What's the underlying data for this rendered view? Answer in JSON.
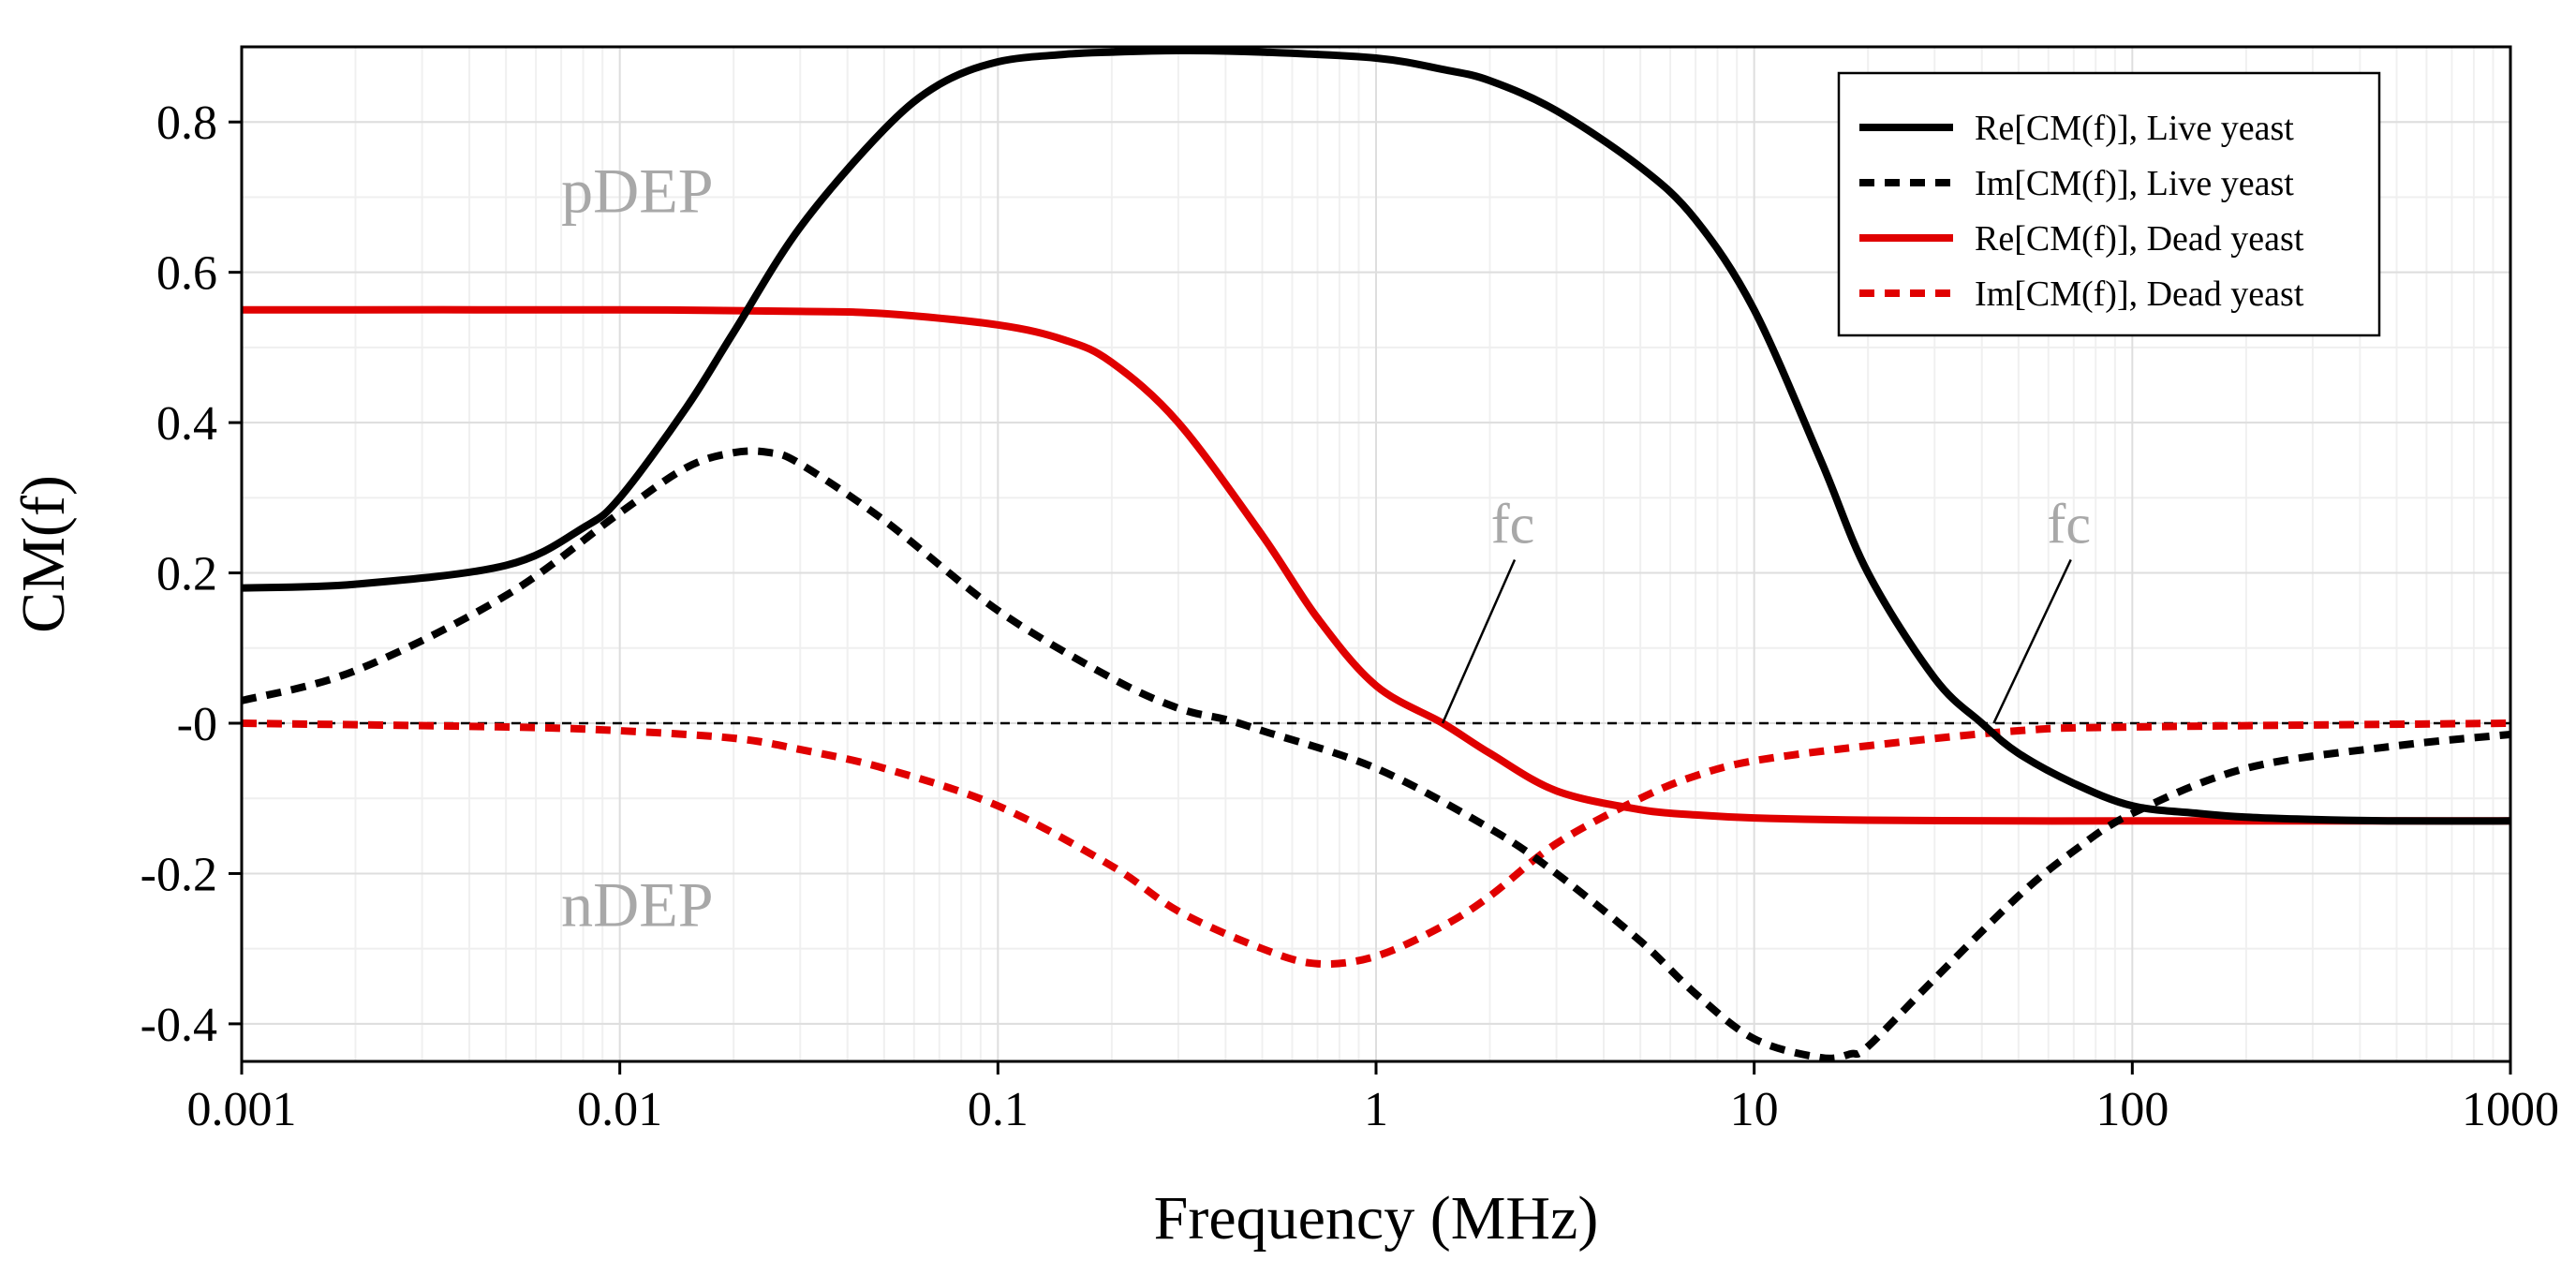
{
  "chart_data": {
    "type": "line",
    "xscale": "log",
    "xlabel": "Frequency (MHz)",
    "ylabel": "CM(f)",
    "xlim": [
      0.001,
      1000
    ],
    "ylim": [
      -0.45,
      0.9
    ],
    "grid": true,
    "legend_position": "top-right",
    "x_ticks": [
      0.001,
      0.01,
      0.1,
      1,
      10,
      100,
      1000
    ],
    "x_tick_labels": [
      "0.001",
      "0.01",
      "0.1",
      "1",
      "10",
      "100",
      "1000"
    ],
    "y_ticks": [
      0.8,
      0.6,
      0.4,
      0.2,
      0,
      -0.2,
      -0.4
    ],
    "y_tick_labels": [
      "0.8",
      "0.6",
      "0.4",
      "0.2",
      "-0",
      "-0.2",
      "-0.4"
    ],
    "series": [
      {
        "name": "Re[CM(f)], Live yeast",
        "color": "#000000",
        "dash": "solid",
        "x": [
          0.001,
          0.002,
          0.005,
          0.008,
          0.01,
          0.015,
          0.02,
          0.03,
          0.05,
          0.07,
          0.1,
          0.15,
          0.2,
          0.3,
          0.5,
          1,
          1.5,
          2,
          3,
          5,
          7,
          10,
          15,
          20,
          30,
          40,
          50,
          70,
          100,
          150,
          200,
          300,
          500,
          1000
        ],
        "values": [
          0.18,
          0.185,
          0.21,
          0.26,
          0.3,
          0.42,
          0.52,
          0.66,
          0.79,
          0.85,
          0.88,
          0.89,
          0.893,
          0.895,
          0.893,
          0.885,
          0.87,
          0.855,
          0.815,
          0.74,
          0.67,
          0.55,
          0.35,
          0.2,
          0.06,
          0.0,
          -0.04,
          -0.08,
          -0.11,
          -0.12,
          -0.125,
          -0.128,
          -0.13,
          -0.13
        ]
      },
      {
        "name": "Im[CM(f)], Live yeast",
        "color": "#000000",
        "dash": "dashed",
        "x": [
          0.001,
          0.002,
          0.005,
          0.01,
          0.015,
          0.02,
          0.025,
          0.03,
          0.05,
          0.1,
          0.2,
          0.3,
          0.4,
          0.5,
          1,
          2,
          3,
          5,
          7,
          10,
          15,
          18,
          20,
          30,
          50,
          70,
          100,
          200,
          500,
          1000
        ],
        "values": [
          0.03,
          0.07,
          0.17,
          0.28,
          0.34,
          0.36,
          0.36,
          0.345,
          0.27,
          0.15,
          0.06,
          0.02,
          0.005,
          -0.01,
          -0.06,
          -0.14,
          -0.2,
          -0.29,
          -0.36,
          -0.42,
          -0.445,
          -0.44,
          -0.43,
          -0.34,
          -0.23,
          -0.17,
          -0.12,
          -0.06,
          -0.03,
          -0.015
        ]
      },
      {
        "name": "Re[CM(f)], Dead yeast",
        "color": "#e00000",
        "dash": "solid",
        "x": [
          0.001,
          0.01,
          0.03,
          0.05,
          0.1,
          0.15,
          0.2,
          0.3,
          0.5,
          0.7,
          1,
          1.5,
          2,
          3,
          5,
          7,
          10,
          20,
          50,
          100,
          1000
        ],
        "values": [
          0.55,
          0.55,
          0.548,
          0.545,
          0.53,
          0.51,
          0.48,
          0.4,
          0.25,
          0.14,
          0.05,
          0.0,
          -0.04,
          -0.09,
          -0.115,
          -0.122,
          -0.126,
          -0.129,
          -0.13,
          -0.13,
          -0.13
        ]
      },
      {
        "name": "Im[CM(f)], Dead yeast",
        "color": "#e00000",
        "dash": "dashed",
        "x": [
          0.001,
          0.005,
          0.01,
          0.02,
          0.03,
          0.05,
          0.1,
          0.2,
          0.3,
          0.5,
          0.7,
          1,
          1.5,
          2,
          3,
          5,
          7,
          10,
          20,
          50,
          100,
          1000
        ],
        "values": [
          0.0,
          -0.005,
          -0.01,
          -0.02,
          -0.035,
          -0.06,
          -0.11,
          -0.19,
          -0.25,
          -0.3,
          -0.32,
          -0.31,
          -0.27,
          -0.23,
          -0.16,
          -0.1,
          -0.07,
          -0.05,
          -0.03,
          -0.01,
          -0.005,
          0.0
        ]
      }
    ],
    "annotations": [
      {
        "text": "pDEP",
        "x": 0.007,
        "y": 0.68
      },
      {
        "text": "nDEP",
        "x": 0.007,
        "y": -0.27
      },
      {
        "text": "fc",
        "x": 2.3,
        "y": 0.24,
        "arrow_to_x": 1.5,
        "arrow_to_y": 0.0
      },
      {
        "text": "fc",
        "x": 68,
        "y": 0.24,
        "arrow_to_x": 43,
        "arrow_to_y": 0.0
      }
    ]
  }
}
